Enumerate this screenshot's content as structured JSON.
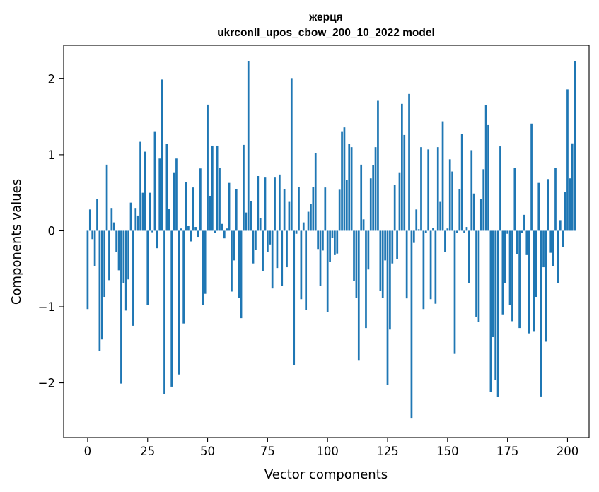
{
  "chart_data": {
    "type": "bar",
    "title_line1": "жерця",
    "title_line2": "ukrconll_upos_cbow_200_10_2022 model",
    "xlabel": "Vector components",
    "ylabel": "Components values",
    "xlim": [
      -10,
      209
    ],
    "ylim": [
      -2.72,
      2.44
    ],
    "xticks": [
      0,
      25,
      50,
      75,
      100,
      125,
      150,
      175,
      200
    ],
    "yticks": [
      -2,
      -1,
      0,
      1,
      2
    ],
    "ytick_labels": [
      "−2",
      "−1",
      "0",
      "1",
      "2"
    ],
    "bar_color": "#1f77b4",
    "grid": false,
    "values": [
      -1.03,
      0.28,
      -0.11,
      -0.47,
      0.42,
      -1.58,
      -1.43,
      -0.87,
      0.87,
      -0.65,
      0.3,
      0.11,
      -0.28,
      -0.52,
      -2.01,
      -0.69,
      -1.05,
      -0.64,
      0.37,
      -1.25,
      0.3,
      0.2,
      1.17,
      0.5,
      1.04,
      -0.98,
      0.5,
      -0.02,
      1.3,
      -0.23,
      0.95,
      1.99,
      -2.15,
      1.14,
      0.29,
      -2.05,
      0.76,
      0.95,
      -1.89,
      0.03,
      -1.22,
      0.64,
      0.06,
      -0.14,
      0.57,
      0.05,
      -0.08,
      0.82,
      -0.98,
      -0.83,
      1.66,
      0.46,
      1.12,
      -0.03,
      1.12,
      0.83,
      0.09,
      -0.1,
      0.03,
      0.63,
      -0.8,
      -0.39,
      0.55,
      -0.88,
      -1.15,
      1.13,
      0.24,
      2.23,
      0.39,
      -0.43,
      -0.25,
      0.72,
      0.17,
      -0.53,
      0.7,
      -0.28,
      -0.18,
      -0.76,
      0.7,
      -0.49,
      0.74,
      -0.73,
      0.55,
      -0.48,
      0.38,
      2.0,
      -1.77,
      -0.04,
      0.58,
      -0.9,
      0.11,
      -1.04,
      0.25,
      0.35,
      0.58,
      1.02,
      -0.24,
      -0.73,
      -0.26,
      0.57,
      -1.07,
      -0.41,
      -0.09,
      -0.32,
      -0.3,
      0.54,
      1.3,
      1.36,
      0.67,
      1.14,
      1.1,
      -0.66,
      -0.88,
      -1.7,
      0.87,
      0.15,
      -1.28,
      -0.51,
      0.69,
      0.86,
      1.1,
      1.71,
      -0.79,
      -0.88,
      -0.39,
      -2.03,
      -1.3,
      -0.43,
      0.6,
      -0.37,
      0.76,
      1.67,
      1.26,
      -0.89,
      1.8,
      -2.47,
      -0.16,
      0.28,
      0.02,
      1.1,
      -1.03,
      -0.03,
      1.07,
      -0.9,
      0.04,
      -0.96,
      1.1,
      0.38,
      1.44,
      -0.28,
      0.03,
      0.94,
      0.78,
      -1.62,
      -0.03,
      0.55,
      1.27,
      -0.03,
      0.05,
      -0.69,
      1.06,
      0.49,
      -1.13,
      -1.2,
      0.42,
      0.81,
      1.65,
      1.39,
      -2.12,
      -1.4,
      -1.96,
      -2.19,
      1.11,
      -1.1,
      -0.69,
      -0.04,
      -0.98,
      -1.19,
      0.83,
      -0.31,
      -1.28,
      -0.03,
      0.21,
      -0.32,
      -1.35,
      1.41,
      -1.32,
      -0.87,
      0.63,
      -2.18,
      -0.48,
      -1.46,
      0.68,
      -0.29,
      -0.47,
      0.83,
      -0.69,
      0.14,
      -0.21,
      0.51,
      1.86,
      0.69,
      1.15,
      2.23
    ]
  }
}
